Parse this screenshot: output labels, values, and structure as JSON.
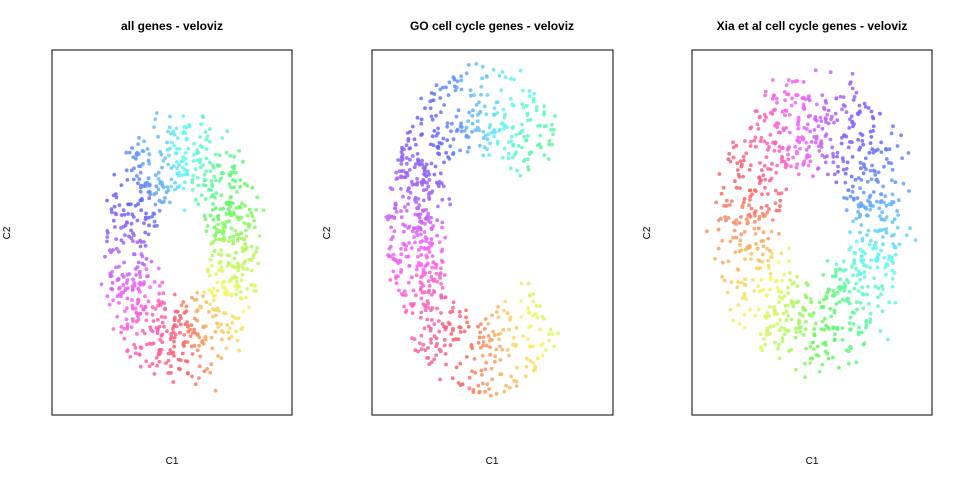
{
  "figure": {
    "background": "#ffffff"
  },
  "panels": [
    {
      "title": "all genes - veloviz",
      "xlabel": "C1",
      "ylabel": "C2",
      "shape": "ring",
      "params": {
        "cx": 0.54,
        "cy": 0.45,
        "rx": 0.32,
        "ry": 0.36,
        "hole": 0.09,
        "phase": 0.25,
        "n": 820,
        "seed": 11
      },
      "xlim": [
        0,
        1
      ],
      "ylim": [
        0,
        1
      ]
    },
    {
      "title": "GO cell cycle genes - veloviz",
      "xlabel": "C1",
      "ylabel": "C2",
      "shape": "arc",
      "params": {
        "cx": 0.46,
        "cy": 0.5,
        "rx": 0.34,
        "ry": 0.4,
        "hole": 0.1,
        "phase": 0.3,
        "n": 760,
        "seed": 23
      },
      "xlim": [
        0,
        1
      ],
      "ylim": [
        0,
        1
      ]
    },
    {
      "title": "Xia et al cell cycle genes - veloviz",
      "xlabel": "C1",
      "ylabel": "C2",
      "shape": "ring",
      "params": {
        "cx": 0.5,
        "cy": 0.52,
        "rx": 0.39,
        "ry": 0.4,
        "hole": 0.12,
        "phase": 0.55,
        "n": 900,
        "seed": 37
      },
      "xlim": [
        0,
        1
      ],
      "ylim": [
        0,
        1
      ]
    }
  ],
  "chart_data": [
    {
      "type": "scatter",
      "title": "all genes - veloviz",
      "xlabel": "C1",
      "ylabel": "C2",
      "axes": "none",
      "color_scale": "cell-cycle phase (rainbow)",
      "series": [
        {
          "x": [
            0.26,
            0.3,
            0.36,
            0.44,
            0.52,
            0.6,
            0.68,
            0.76,
            0.82
          ],
          "y": [
            0.52,
            0.38,
            0.3,
            0.27,
            0.3,
            0.36,
            0.45,
            0.58,
            0.7
          ]
        }
      ]
    },
    {
      "type": "scatter",
      "title": "GO cell cycle genes - veloviz",
      "xlabel": "C1",
      "ylabel": "C2",
      "axes": "none",
      "color_scale": "cell-cycle phase (rainbow)",
      "series": [
        {
          "x": [
            0.2,
            0.28,
            0.38,
            0.48,
            0.58,
            0.66,
            0.72,
            0.74
          ],
          "y": [
            0.72,
            0.55,
            0.35,
            0.18,
            0.22,
            0.38,
            0.58,
            0.78
          ]
        }
      ]
    },
    {
      "type": "scatter",
      "title": "Xia et al cell cycle genes - veloviz",
      "xlabel": "C1",
      "ylabel": "C2",
      "axes": "none",
      "color_scale": "cell-cycle phase (rainbow)",
      "series": [
        {
          "x": [
            0.12,
            0.2,
            0.32,
            0.46,
            0.6,
            0.74,
            0.86,
            0.88
          ],
          "y": [
            0.5,
            0.3,
            0.18,
            0.14,
            0.2,
            0.32,
            0.52,
            0.72
          ]
        }
      ]
    }
  ]
}
